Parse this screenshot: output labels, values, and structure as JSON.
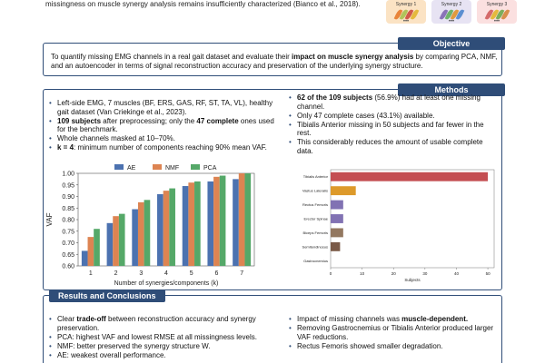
{
  "intro": {
    "text": "missingness on muscle synergy analysis remains insufficiently characterized (Bianco et al., 2018)."
  },
  "synergy_cards": [
    {
      "label": "Synergy 1",
      "color": "#fbe3c4",
      "leaf_colors": [
        "#e8843a",
        "#b0c45a",
        "#d05a4a",
        "#e5b93d"
      ]
    },
    {
      "label": "Synergy 2",
      "color": "#e7e3f3",
      "leaf_colors": [
        "#8a73b8",
        "#6fb36b",
        "#e09a3e",
        "#5b8fd1"
      ]
    },
    {
      "label": "Synergy 3",
      "color": "#fbe0e0",
      "leaf_colors": [
        "#d46a6a",
        "#e5b93d",
        "#7cae5b",
        "#d88f4c"
      ]
    }
  ],
  "objective": {
    "title": "Objective",
    "text_pre": "To quantify missing EMG channels in a real gait dataset and evaluate their ",
    "text_bold": "impact on muscle synergy analysis",
    "text_post": " by comparing PCA, NMF, and an autoencoder in terms of signal reconstruction accuracy and preservation of the underlying synergy structure."
  },
  "methods": {
    "title": "Methods",
    "left_bullets": [
      {
        "pre": "",
        "bold": "",
        "post": "Left-side EMG, 7 muscles (BF, ERS, GAS, RF, ST, TA, VL), healthy gait dataset (Van Criekinge et al., 2023)."
      },
      {
        "pre": "",
        "bold": "109 subjects",
        "post": " after preprocessing; only the ",
        "bold2": "47 complete",
        "post2": " ones used for the benchmark."
      },
      {
        "pre": "",
        "bold": "",
        "post": "Whole channels masked at 10–70%."
      },
      {
        "pre": "",
        "bold": "k = 4",
        "post": ": minimum number of components reaching 90% mean VAF."
      }
    ],
    "right_bullets": [
      {
        "bold": "62 of the 109 subjects",
        "post": " (56.9%) had at least one missing channel."
      },
      {
        "bold": "",
        "post": "Only 47 complete cases (43.1%) available."
      },
      {
        "bold": "",
        "post": "Tibialis Anterior missing in 50 subjects and far fewer in the rest."
      },
      {
        "bold": "",
        "post": "This considerably reduces the amount of usable complete data."
      }
    ]
  },
  "results": {
    "title": "Results and Conclusions",
    "left_bullets": [
      {
        "pre": "Clear ",
        "bold": "trade-off",
        "post": " between reconstruction accuracy and synergy preservation."
      },
      {
        "pre": "PCA: highest VAF and lowest RMSE at all missingness levels.",
        "bold": "",
        "post": ""
      },
      {
        "pre": "NMF: better preserved the synergy structure W.",
        "bold": "",
        "post": ""
      },
      {
        "pre": "AE: weakest overall performance.",
        "bold": "",
        "post": ""
      }
    ],
    "right_bullets": [
      {
        "pre": "Impact of missing channels was ",
        "bold": "muscle-dependent.",
        "post": ""
      },
      {
        "pre": "Removing Gastrocnemius or Tibialis Anterior produced larger VAF reductions.",
        "bold": "",
        "post": ""
      },
      {
        "pre": "Rectus Femoris showed smaller degradation.",
        "bold": "",
        "post": ""
      }
    ]
  },
  "chart_data": [
    {
      "type": "bar",
      "categories": [
        "1",
        "2",
        "3",
        "4",
        "5",
        "6",
        "7"
      ],
      "series": [
        {
          "name": "AE",
          "color": "#4c72b0",
          "values": [
            0.665,
            0.785,
            0.845,
            0.91,
            0.945,
            0.965,
            0.975
          ]
        },
        {
          "name": "NMF",
          "color": "#dd8452",
          "values": [
            0.725,
            0.815,
            0.875,
            0.925,
            0.96,
            0.985,
            1.0
          ]
        },
        {
          "name": "PCA",
          "color": "#55a868",
          "values": [
            0.76,
            0.825,
            0.885,
            0.935,
            0.965,
            0.99,
            1.0
          ]
        }
      ],
      "xlabel": "Number of synergies/components (k)",
      "ylabel": "VAF",
      "ylim": [
        0.6,
        1.0
      ],
      "yticks": [
        "0.60",
        "0.65",
        "0.70",
        "0.75",
        "0.80",
        "0.85",
        "0.90",
        "0.95",
        "1.00"
      ],
      "legend": "top"
    },
    {
      "type": "bar",
      "orientation": "horizontal",
      "categories": [
        "Tibialis Anterior",
        "Vastus Lateralis",
        "Rectus Femoris",
        "Erector Spinae",
        "Biceps Femoris",
        "Semitendinosus",
        "Gastrocnemius"
      ],
      "values": [
        50,
        8,
        4,
        4,
        4,
        3,
        0
      ],
      "colors": [
        "#c44e52",
        "#dd9a2b",
        "#8172b3",
        "#8172b3",
        "#937860",
        "#7a5a48",
        "#999999"
      ],
      "xlabel": "Subjects",
      "xlim": [
        0,
        52
      ],
      "xticks": [
        "0",
        "10",
        "20",
        "30",
        "40",
        "50"
      ]
    }
  ]
}
